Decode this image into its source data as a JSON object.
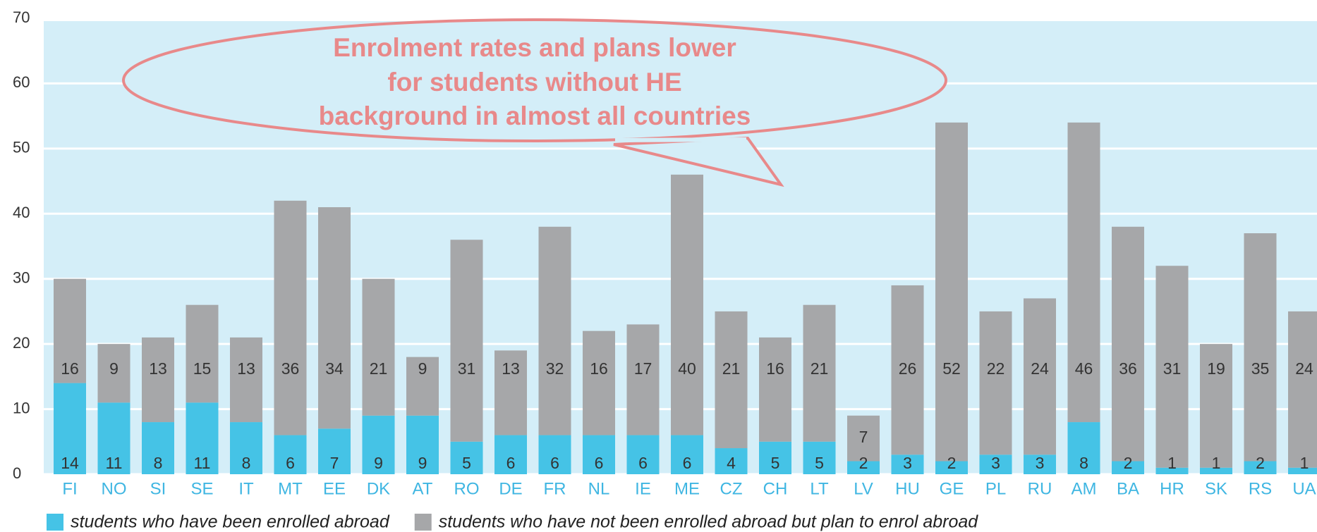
{
  "chart_data": {
    "type": "stacked_bar",
    "categories": [
      "FI",
      "NO",
      "SI",
      "SE",
      "IT",
      "MT",
      "EE",
      "DK",
      "AT",
      "RO",
      "DE",
      "FR",
      "NL",
      "IE",
      "ME",
      "CZ",
      "CH",
      "LT",
      "LV",
      "HU",
      "GE",
      "PL",
      "RU",
      "AM",
      "BA",
      "HR",
      "SK",
      "RS",
      "UA"
    ],
    "series": [
      {
        "name": "students who have been enrolled abroad",
        "color": "#45c3e6",
        "values": [
          14,
          11,
          8,
          11,
          8,
          6,
          7,
          9,
          9,
          5,
          6,
          6,
          6,
          6,
          6,
          4,
          5,
          5,
          2,
          3,
          2,
          3,
          3,
          8,
          2,
          1,
          1,
          2,
          1
        ]
      },
      {
        "name": "students who have not been enrolled abroad but plan to enrol abroad",
        "color": "#a6a7a9",
        "values": [
          16,
          9,
          13,
          15,
          13,
          36,
          34,
          21,
          9,
          31,
          13,
          32,
          16,
          17,
          40,
          21,
          16,
          21,
          7,
          26,
          52,
          22,
          24,
          46,
          36,
          31,
          19,
          35,
          24
        ]
      }
    ],
    "ylim": [
      0,
      70
    ],
    "yticks": [
      0,
      10,
      20,
      30,
      40,
      50,
      60,
      70
    ],
    "grid": true,
    "annotation": [
      "Enrolment rates and plans lower",
      "for students without HE",
      "background in almost all countries"
    ]
  }
}
